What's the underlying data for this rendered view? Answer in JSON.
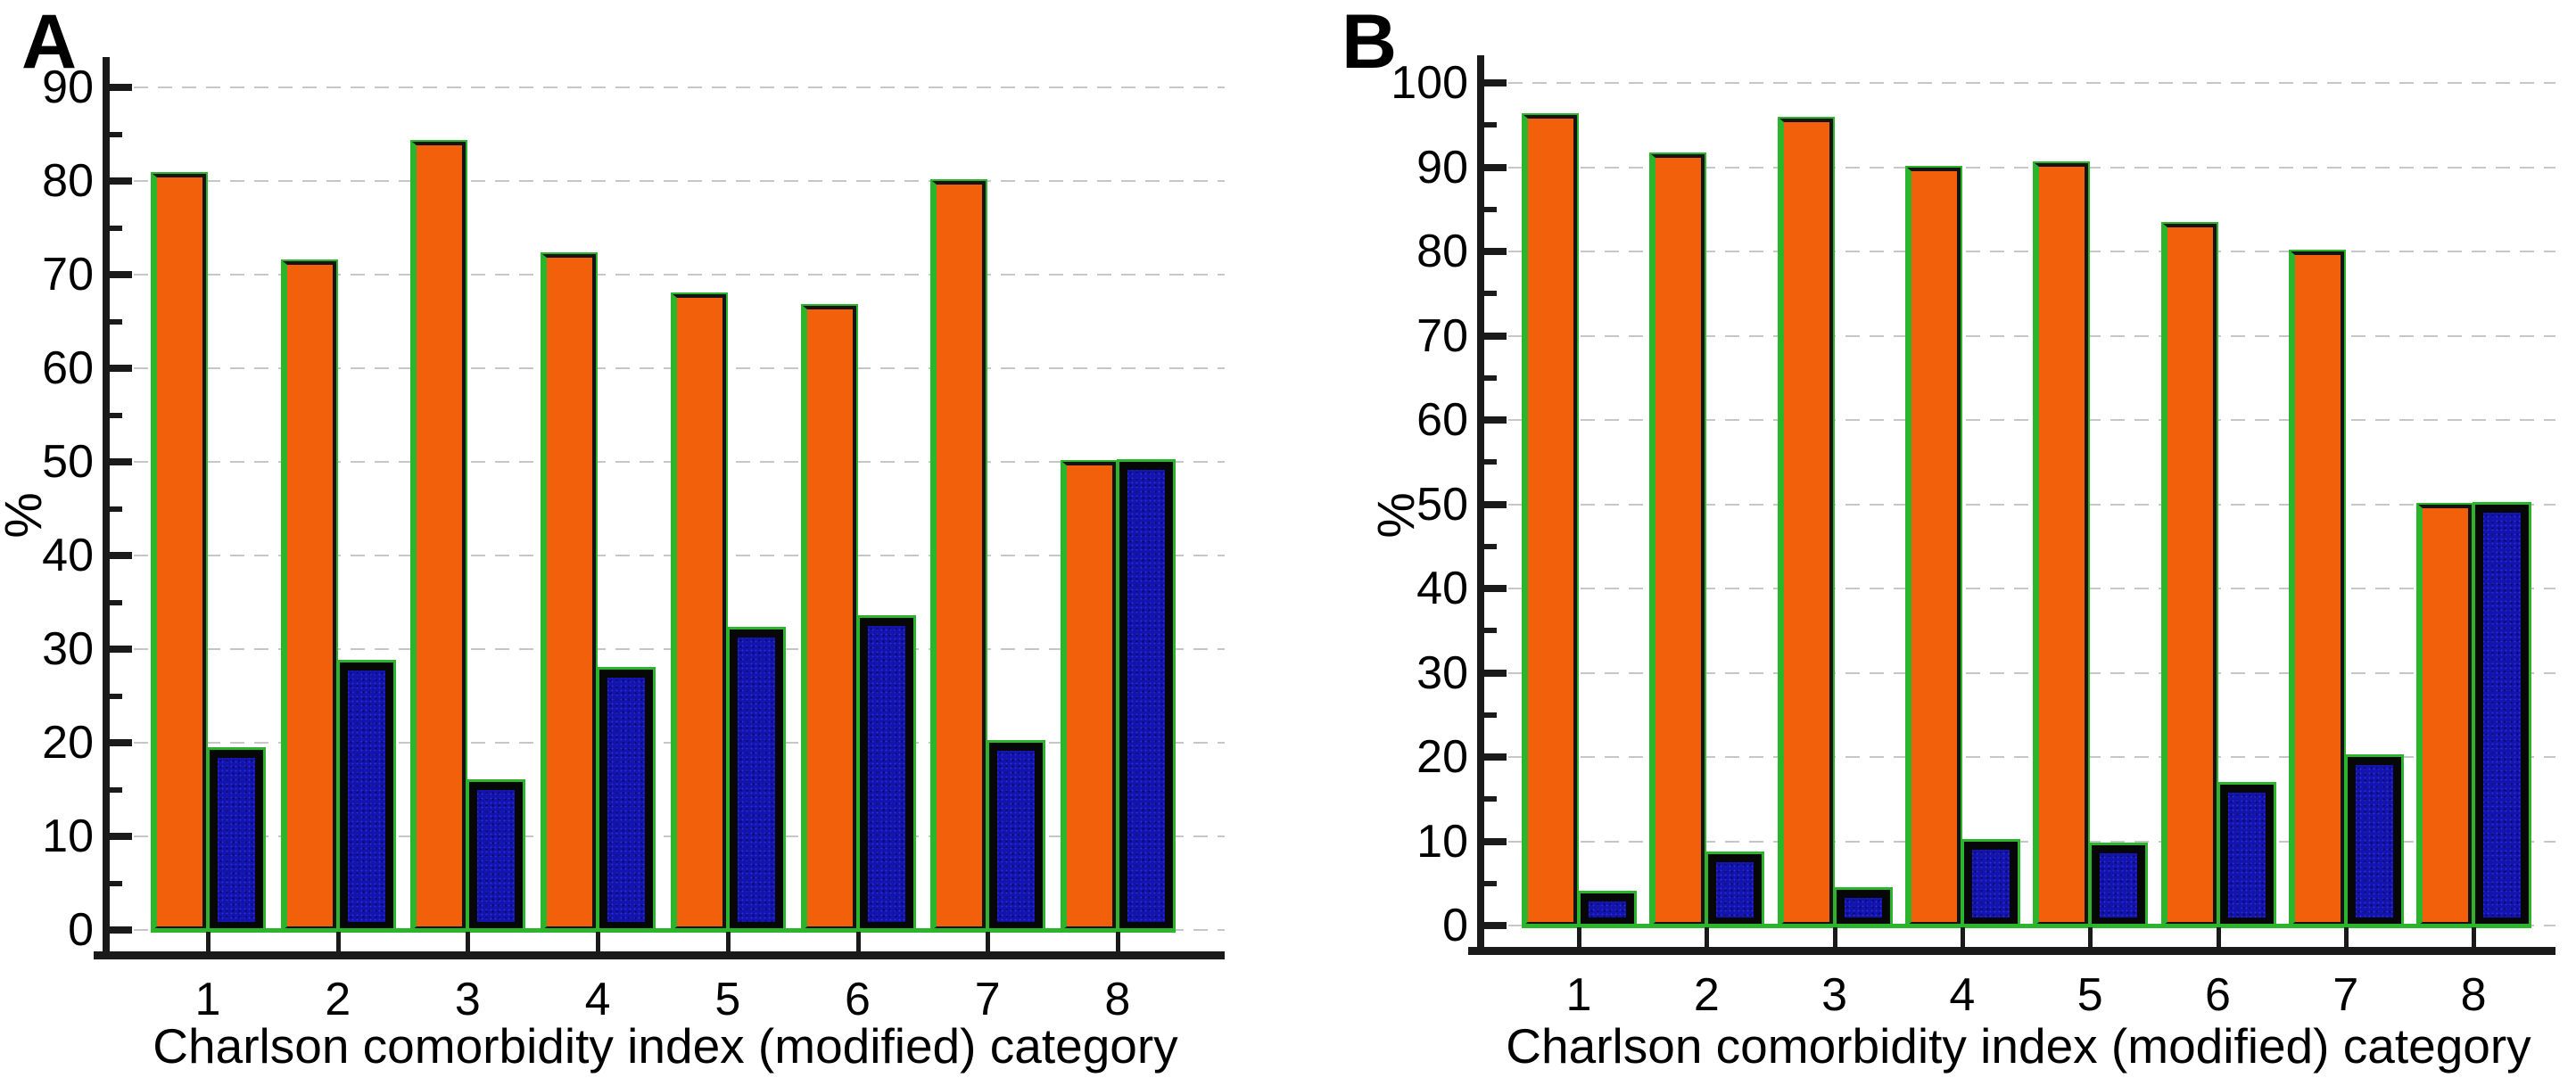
{
  "figure": {
    "background": "#ffffff"
  },
  "colors": {
    "bar_orange": "#f3600c",
    "bar_blue_fill": "#1313ae",
    "bar_black_border": "#141414",
    "outline_green": "#2cb52c",
    "axis": "#1a1a1a",
    "gridline": "#c7c7c7",
    "text": "#000000"
  },
  "chart_data": [
    {
      "panel_label": "A",
      "type": "bar",
      "title": "",
      "ylabel": "%",
      "xlabel": "Charlson comorbidity index (modified) category",
      "categories": [
        "1",
        "2",
        "3",
        "4",
        "5",
        "6",
        "7",
        "8"
      ],
      "ylim": [
        0,
        90
      ],
      "yticks": [
        "0",
        "10",
        "20",
        "30",
        "40",
        "50",
        "60",
        "70",
        "80",
        "90"
      ],
      "ytick_major_step": 10,
      "ytick_minor_step": 5,
      "grid": "horizontal-dashed",
      "legend_position": "none",
      "series": [
        {
          "name": "orange-bars",
          "color": "#f3600c",
          "values": [
            80.8,
            71.4,
            84.2,
            72.2,
            67.9,
            66.7,
            80.0,
            50.0
          ]
        },
        {
          "name": "blue-bars",
          "color": "#1313ae",
          "values": [
            19.2,
            28.6,
            15.8,
            27.8,
            32.1,
            33.3,
            20.0,
            50.0
          ]
        }
      ]
    },
    {
      "panel_label": "B",
      "type": "bar",
      "title": "",
      "ylabel": "%",
      "xlabel": "Charlson comorbidity index (modified) category",
      "categories": [
        "1",
        "2",
        "3",
        "4",
        "5",
        "6",
        "7",
        "8"
      ],
      "ylim": [
        0,
        100
      ],
      "yticks": [
        "0",
        "10",
        "20",
        "30",
        "40",
        "50",
        "60",
        "70",
        "80",
        "90",
        "100"
      ],
      "ytick_major_step": 10,
      "ytick_minor_step": 5,
      "grid": "horizontal-dashed",
      "legend_position": "none",
      "series": [
        {
          "name": "orange-bars",
          "color": "#f3600c",
          "values": [
            96.2,
            91.5,
            95.8,
            90.0,
            90.5,
            83.3,
            80.0,
            50.0
          ]
        },
        {
          "name": "blue-bars",
          "color": "#1313ae",
          "values": [
            3.8,
            8.5,
            4.2,
            10.0,
            9.5,
            16.7,
            20.0,
            50.0
          ]
        }
      ]
    }
  ]
}
